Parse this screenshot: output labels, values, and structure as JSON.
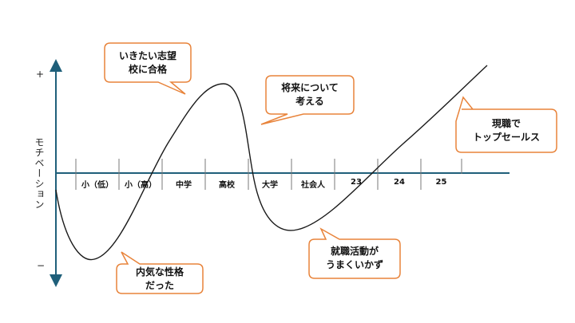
{
  "axis": {
    "plus": "+",
    "minus": "−",
    "ylabel": "モチベーション"
  },
  "segments": [
    "小（低）",
    "小（高）",
    "中学",
    "高校",
    "大学",
    "社会人",
    "23",
    "24",
    "25"
  ],
  "callouts": {
    "goal": [
      "いきたい志望",
      "校に合格"
    ],
    "future": [
      "将来について",
      "考える"
    ],
    "sales": [
      "現職で",
      "トップセールス"
    ],
    "jobhunt": [
      "就職活動が",
      "うまくいかず"
    ],
    "introvert": [
      "内気な性格",
      "だった"
    ]
  },
  "colors": {
    "axis": "#1f5f7a",
    "curve": "#1a1a1a",
    "callout_border": "#e8833a",
    "callout_fill": "#ffffff"
  }
}
